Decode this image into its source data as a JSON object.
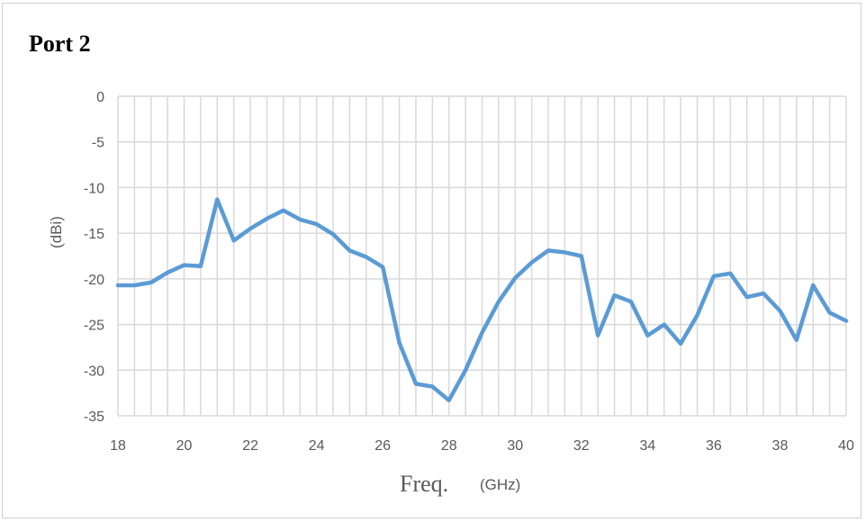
{
  "chart_data": {
    "type": "line",
    "title": "Port 2",
    "ylabel": "(dBi)",
    "xlabel": "Freq.",
    "xlabel_unit": "(GHz)",
    "xlim": [
      18,
      40
    ],
    "ylim": [
      -35,
      0
    ],
    "x_ticks": [
      "18",
      "20",
      "22",
      "24",
      "26",
      "28",
      "30",
      "32",
      "34",
      "36",
      "38",
      "40"
    ],
    "y_ticks": [
      "0",
      "-5",
      "-10",
      "-15",
      "-20",
      "-25",
      "-30",
      "-35"
    ],
    "grid": true,
    "line_color": "#5b9bd5",
    "series": [
      {
        "x": [
          18,
          18.5,
          19,
          19.5,
          20,
          20.5,
          21,
          21.5,
          22,
          22.5,
          23,
          23.5,
          24,
          24.5,
          25,
          25.5,
          26,
          26.5,
          27,
          27.5,
          28,
          28.5,
          29,
          29.5,
          30,
          30.5,
          31,
          31.5,
          32,
          32.5,
          33,
          33.5,
          34,
          34.5,
          35,
          35.5,
          36,
          36.5,
          37,
          37.5,
          38,
          38.5,
          39,
          39.5,
          40
        ],
        "y": [
          -20.7,
          -20.7,
          -20.4,
          -19.3,
          -18.5,
          -18.6,
          -11.3,
          -15.8,
          -14.5,
          -13.4,
          -12.5,
          -13.5,
          -14.0,
          -15.1,
          -16.9,
          -17.6,
          -18.7,
          -27.0,
          -31.5,
          -31.8,
          -33.3,
          -30.0,
          -25.9,
          -22.5,
          -19.9,
          -18.2,
          -16.9,
          -17.1,
          -17.5,
          -26.2,
          -21.8,
          -22.5,
          -26.2,
          -25.0,
          -27.1,
          -24.0,
          -19.7,
          -19.4,
          -22.0,
          -21.6,
          -23.5,
          -26.7,
          -20.7,
          -23.7,
          -24.6
        ]
      }
    ]
  }
}
